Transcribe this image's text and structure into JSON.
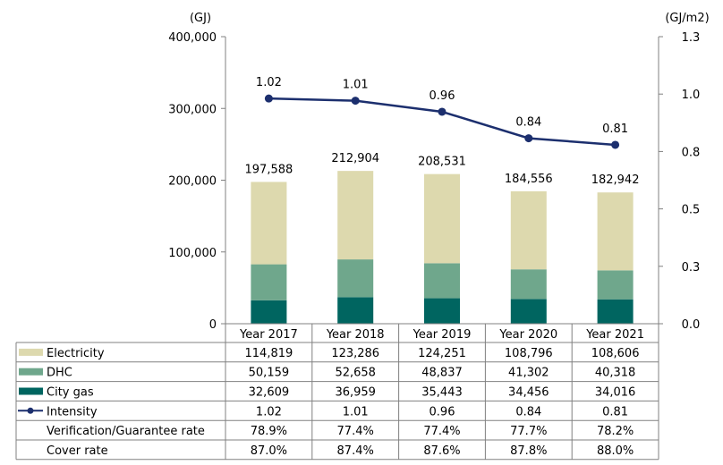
{
  "chart_data": {
    "type": "bar",
    "stacked": true,
    "categories": [
      "Year 2017",
      "Year 2018",
      "Year 2019",
      "Year 2020",
      "Year 2021"
    ],
    "left_axis": {
      "unit": "(GJ)",
      "ylim": [
        0,
        400000
      ],
      "ticks": [
        "0",
        "100,000",
        "200,000",
        "300,000",
        "400,000"
      ]
    },
    "right_axis": {
      "unit": "(GJ/m2)",
      "ylim": [
        0.0,
        1.3
      ],
      "ticks": [
        "0.0",
        "0.3",
        "0.5",
        "0.8",
        "1.0",
        "1.3"
      ]
    },
    "series": [
      {
        "name": "City gas",
        "type": "bar",
        "axis": "left",
        "color": "#006560",
        "values": [
          32609,
          36959,
          35443,
          34456,
          34016
        ],
        "labels": [
          "32,609",
          "36,959",
          "35,443",
          "34,456",
          "34,016"
        ]
      },
      {
        "name": "DHC",
        "type": "bar",
        "axis": "left",
        "color": "#6fa78c",
        "values": [
          50159,
          52658,
          48837,
          41302,
          40318
        ],
        "labels": [
          "50,159",
          "52,658",
          "48,837",
          "41,302",
          "40,318"
        ]
      },
      {
        "name": "Electricity",
        "type": "bar",
        "axis": "left",
        "color": "#ddd9ae",
        "values": [
          114819,
          123286,
          124251,
          108796,
          108606
        ],
        "labels": [
          "114,819",
          "123,286",
          "124,251",
          "108,796",
          "108,606"
        ]
      },
      {
        "name": "Intensity",
        "type": "line",
        "axis": "right",
        "color": "#1c2f6e",
        "values": [
          1.02,
          1.01,
          0.96,
          0.84,
          0.81
        ],
        "labels": [
          "1.02",
          "1.01",
          "0.96",
          "0.84",
          "0.81"
        ]
      }
    ],
    "totals": [
      197588,
      212904,
      208531,
      184556,
      182942
    ],
    "total_labels": [
      "197,588",
      "212,904",
      "208,531",
      "184,556",
      "182,942"
    ],
    "table_rows": [
      {
        "label": "Electricity",
        "legend": "bar",
        "color": "#ddd9ae",
        "values": [
          "114,819",
          "123,286",
          "124,251",
          "108,796",
          "108,606"
        ]
      },
      {
        "label": "DHC",
        "legend": "bar",
        "color": "#6fa78c",
        "values": [
          "50,159",
          "52,658",
          "48,837",
          "41,302",
          "40,318"
        ]
      },
      {
        "label": "City gas",
        "legend": "bar",
        "color": "#006560",
        "values": [
          "32,609",
          "36,959",
          "35,443",
          "34,456",
          "34,016"
        ]
      },
      {
        "label": "Intensity",
        "legend": "line",
        "color": "#1c2f6e",
        "values": [
          "1.02",
          "1.01",
          "0.96",
          "0.84",
          "0.81"
        ]
      },
      {
        "label": "Verification/Guarantee rate",
        "legend": "none",
        "values": [
          "78.9%",
          "77.4%",
          "77.4%",
          "77.7%",
          "78.2%"
        ]
      },
      {
        "label": "Cover rate",
        "legend": "none",
        "values": [
          "87.0%",
          "87.4%",
          "87.6%",
          "87.8%",
          "88.0%"
        ]
      }
    ],
    "legend": "table",
    "grid": false
  }
}
